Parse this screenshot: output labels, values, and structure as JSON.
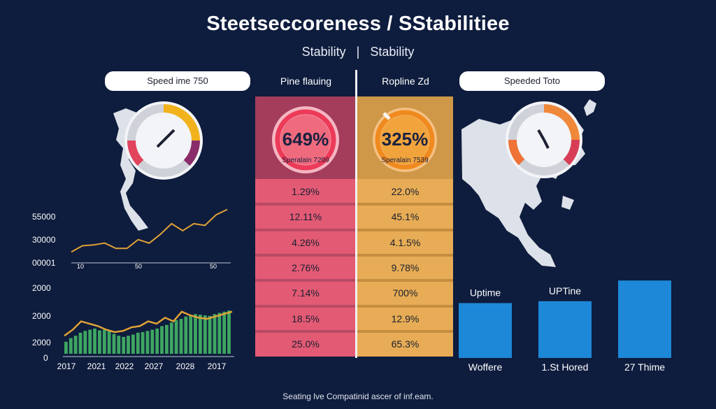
{
  "header": {
    "title": "Steetseccoreness / SStabilitiee",
    "subtitle_left": "Stability",
    "subtitle_sep": "|",
    "subtitle_right": "Stability"
  },
  "pills": {
    "left": "Speed ime 750",
    "right": "Speeded Toto"
  },
  "columns": {
    "pink": {
      "header": "Pine flauing",
      "big_value": "649%",
      "sub_label": "Speralain 7299",
      "rows": [
        "1.29%",
        "12.11%",
        "4.26%",
        "2.76%",
        "7.14%",
        "18.5%",
        "25.0%"
      ]
    },
    "orange": {
      "header": "Ropline Zd",
      "big_value": "325%",
      "sub_label": "Speralain 7539",
      "rows": [
        "22.0%",
        "45.1%",
        "4.1.5%",
        "9.78%",
        "700%",
        "12.9%",
        "65.3%"
      ]
    }
  },
  "footer": "Seating lve Compatinid ascer of inf.eam.",
  "colors": {
    "background": "#0e1c3d",
    "pink": "#e35a75",
    "pink_header": "#a33d5b",
    "orange": "#e7ac55",
    "orange_header": "#cf9748",
    "line": "#e0a236",
    "bars_green": "#3ea661",
    "bars_blue": "#1e88d8"
  },
  "chart_data": [
    {
      "type": "line",
      "y_ticks": [
        "55000",
        "30000",
        "00001"
      ],
      "x_ticks": [
        "10",
        "50",
        "50"
      ],
      "series": [
        {
          "values": [
            6,
            13,
            14,
            16,
            10,
            10,
            20,
            16,
            26,
            38,
            30,
            38,
            36,
            48,
            54
          ]
        }
      ],
      "ylim": [
        0,
        60
      ]
    },
    {
      "type": "bar",
      "x_ticks": [
        "2017",
        "2021",
        "2022",
        "2027",
        "2028",
        "2017"
      ],
      "y_ticks": [
        "2000",
        "2000",
        "2000",
        "0"
      ],
      "bars": [
        20,
        26,
        30,
        35,
        38,
        40,
        42,
        39,
        40,
        38,
        33,
        30,
        28,
        30,
        32,
        35,
        36,
        38,
        40,
        42,
        46,
        48,
        52,
        56,
        58,
        62,
        64,
        66,
        65,
        64,
        63,
        66,
        68,
        70,
        72
      ],
      "line": [
        30,
        40,
        54,
        50,
        46,
        40,
        36,
        38,
        44,
        46,
        54,
        50,
        60,
        54,
        70,
        64,
        60,
        58,
        62,
        66,
        70
      ],
      "ylim": [
        0,
        100
      ]
    },
    {
      "type": "bar",
      "categories": [
        "Woffere",
        "1.St Hored",
        "27 Thime"
      ],
      "values": [
        85,
        88,
        120
      ],
      "bar_labels": [
        "Uptime",
        "UPTine",
        ""
      ],
      "ylim": [
        0,
        130
      ]
    }
  ]
}
